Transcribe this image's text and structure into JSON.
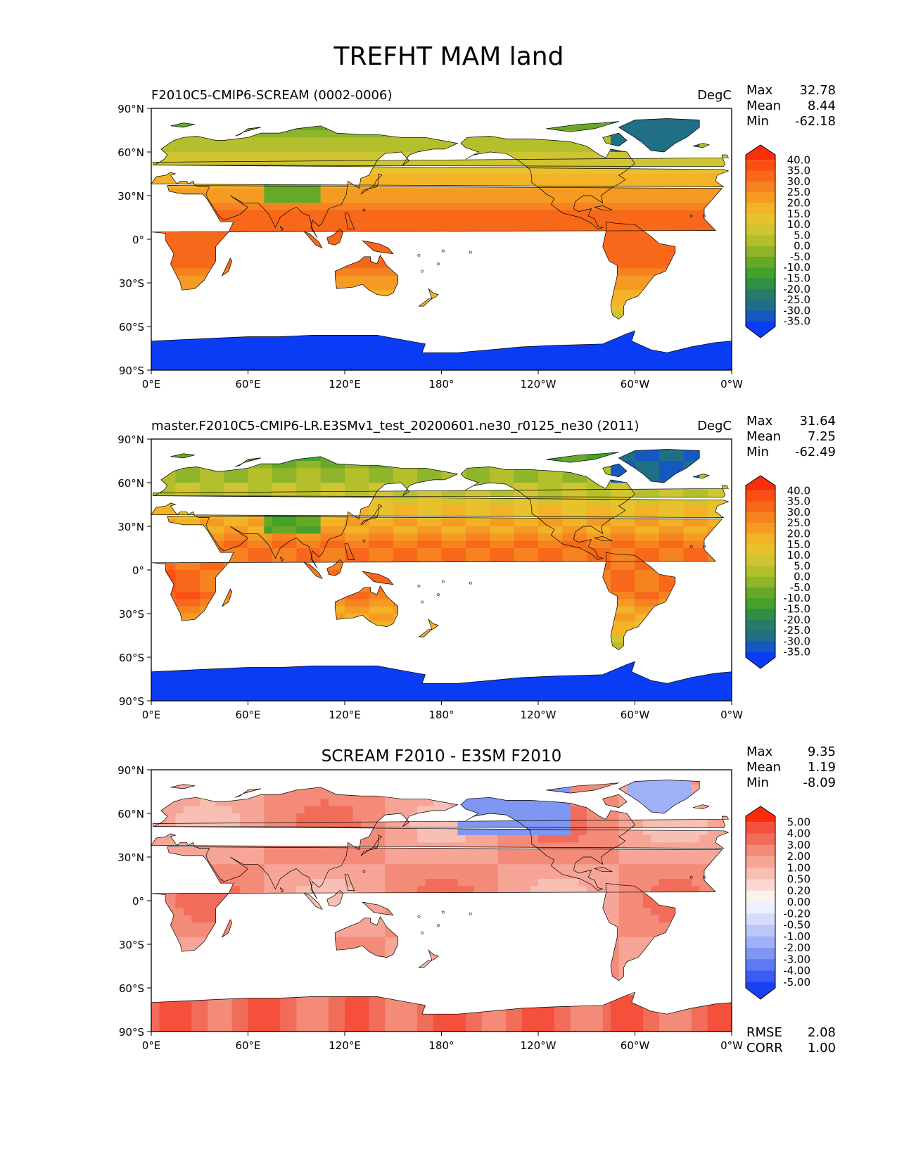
{
  "title": "TREFHT MAM land",
  "lat_ticks": [
    "90°N",
    "60°N",
    "30°N",
    "0°",
    "30°S",
    "60°S",
    "90°S"
  ],
  "lon_ticks": [
    "0°E",
    "60°E",
    "120°E",
    "180°",
    "120°W",
    "60°W",
    "0°W"
  ],
  "stat_labels": {
    "max": "Max",
    "mean": "Mean",
    "min": "Min",
    "rmse": "RMSE",
    "corr": "CORR"
  },
  "panels": [
    {
      "title_left": "F2010C5-CMIP6-SCREAM (0002-0006)",
      "title_center": "",
      "units": "DegC",
      "stats": {
        "max": "32.78",
        "mean": "8.44",
        "min": "-62.18"
      },
      "colormap": "temperature",
      "colorbar_labels": [
        "40.0",
        "35.0",
        "30.0",
        "25.0",
        "20.0",
        "15.0",
        "10.0",
        "5.0",
        "0.0",
        "-5.0",
        "-10.0",
        "-15.0",
        "-20.0",
        "-25.0",
        "-30.0",
        "-35.0"
      ],
      "colorbar_colors": [
        "#fa2e0a",
        "#fb4f12",
        "#f8681a",
        "#f68220",
        "#f59a22",
        "#f4b227",
        "#e8c22c",
        "#cfc432",
        "#b4bf2c",
        "#8fb52a",
        "#66a928",
        "#45a12a",
        "#2e8f45",
        "#277b67",
        "#1f6f86",
        "#1558c2",
        "#0a3cf5"
      ]
    },
    {
      "title_left": "master.F2010C5-CMIP6-LR.E3SMv1_test_20200601.ne30_r0125_ne30 (2011)",
      "title_center": "",
      "units": "DegC",
      "stats": {
        "max": "31.64",
        "mean": "7.25",
        "min": "-62.49"
      },
      "colormap": "temperature",
      "colorbar_labels": [
        "40.0",
        "35.0",
        "30.0",
        "25.0",
        "20.0",
        "15.0",
        "10.0",
        "5.0",
        "0.0",
        "-5.0",
        "-10.0",
        "-15.0",
        "-20.0",
        "-25.0",
        "-30.0",
        "-35.0"
      ],
      "colorbar_colors": [
        "#fa2e0a",
        "#fb4f12",
        "#f8681a",
        "#f68220",
        "#f59a22",
        "#f4b227",
        "#e8c22c",
        "#cfc432",
        "#b4bf2c",
        "#8fb52a",
        "#66a928",
        "#45a12a",
        "#2e8f45",
        "#277b67",
        "#1f6f86",
        "#1558c2",
        "#0a3cf5"
      ]
    },
    {
      "title_left": "",
      "title_center": "SCREAM F2010 - E3SM F2010",
      "units": "",
      "stats": {
        "max": "9.35",
        "mean": "1.19",
        "min": "-8.09"
      },
      "extra": {
        "rmse": "2.08",
        "corr": "1.00"
      },
      "colormap": "difference",
      "colorbar_labels": [
        "5.00",
        "4.00",
        "3.00",
        "2.00",
        "1.00",
        "0.50",
        "0.20",
        "0.00",
        "-0.20",
        "-0.50",
        "-1.00",
        "-2.00",
        "-3.00",
        "-4.00",
        "-5.00"
      ],
      "colorbar_colors": [
        "#ff2a0a",
        "#f4503c",
        "#f26c5a",
        "#f48a78",
        "#f6a596",
        "#f8c0b4",
        "#fbd9d0",
        "#fdf1ee",
        "#eef0fd",
        "#d6dcfb",
        "#bcc6f8",
        "#9fb0f6",
        "#7f96f3",
        "#5c7af1",
        "#3a5cf0",
        "#1a40f2"
      ]
    }
  ]
}
